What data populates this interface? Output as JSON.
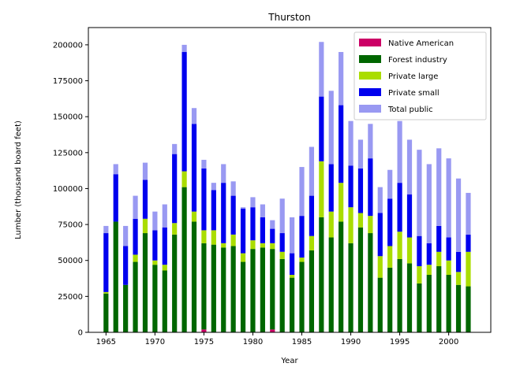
{
  "chart_data": {
    "type": "bar",
    "stacked": true,
    "title": "Thurston",
    "xlabel": "Year",
    "ylabel": "Lumber (thousand board feet)",
    "xlim": [
      1963.2,
      2004.3
    ],
    "ylim": [
      0,
      212000
    ],
    "xticks": [
      1965,
      1970,
      1975,
      1980,
      1985,
      1990,
      1995,
      2000
    ],
    "yticks": [
      0,
      25000,
      50000,
      75000,
      100000,
      125000,
      150000,
      175000,
      200000
    ],
    "legend_position": "upper right",
    "grid": false,
    "x": [
      1965,
      1966,
      1967,
      1968,
      1969,
      1970,
      1971,
      1972,
      1973,
      1974,
      1975,
      1976,
      1977,
      1978,
      1979,
      1980,
      1981,
      1982,
      1983,
      1984,
      1985,
      1986,
      1987,
      1988,
      1989,
      1990,
      1991,
      1992,
      1993,
      1994,
      1995,
      1996,
      1997,
      1998,
      1999,
      2000,
      2001,
      2002
    ],
    "series": [
      {
        "name": "Native American",
        "color": "#cc0066",
        "values": [
          0,
          0,
          0,
          0,
          0,
          0,
          0,
          0,
          0,
          0,
          2000,
          0,
          0,
          0,
          0,
          0,
          0,
          2000,
          0,
          0,
          0,
          0,
          0,
          0,
          0,
          0,
          0,
          0,
          0,
          0,
          0,
          0,
          0,
          0,
          0,
          0,
          0,
          0
        ]
      },
      {
        "name": "Forest industry",
        "color": "#006600",
        "values": [
          27000,
          77000,
          33000,
          49000,
          69000,
          47000,
          43000,
          68000,
          101000,
          77000,
          60000,
          61000,
          59000,
          60000,
          49000,
          58000,
          59000,
          56000,
          51000,
          38000,
          49000,
          57000,
          80000,
          66000,
          77000,
          62000,
          73000,
          69000,
          38000,
          45000,
          51000,
          48000,
          34000,
          40000,
          46000,
          40000,
          33000,
          32000
        ]
      },
      {
        "name": "Private large",
        "color": "#aadd00",
        "values": [
          1000,
          0,
          0,
          5000,
          10000,
          3000,
          4000,
          8000,
          11000,
          7000,
          9000,
          10000,
          3000,
          8000,
          6000,
          6000,
          3000,
          4000,
          5000,
          2000,
          3000,
          10000,
          39000,
          18000,
          27000,
          25000,
          10000,
          12000,
          15000,
          15000,
          19000,
          18000,
          12000,
          7000,
          10000,
          10000,
          9000,
          24000
        ]
      },
      {
        "name": "Private small",
        "color": "#0000ee",
        "values": [
          41000,
          33000,
          27000,
          25000,
          27000,
          21000,
          26000,
          48000,
          83000,
          61000,
          43000,
          28000,
          42000,
          27000,
          31000,
          23000,
          18000,
          10000,
          13000,
          15000,
          29000,
          28000,
          45000,
          33000,
          54000,
          29000,
          31000,
          40000,
          30000,
          33000,
          34000,
          30000,
          21000,
          15000,
          18000,
          16000,
          14000,
          12000
        ]
      },
      {
        "name": "Total public",
        "color": "#9999f2",
        "values": [
          5000,
          7000,
          14000,
          16000,
          12000,
          13000,
          16000,
          7000,
          5000,
          11000,
          6000,
          5000,
          13000,
          10000,
          1000,
          7000,
          9000,
          6000,
          24000,
          25000,
          34000,
          34000,
          38000,
          51000,
          37000,
          31000,
          20000,
          24000,
          18000,
          20000,
          43000,
          38000,
          60000,
          55000,
          54000,
          55000,
          51000,
          29000
        ]
      }
    ]
  }
}
